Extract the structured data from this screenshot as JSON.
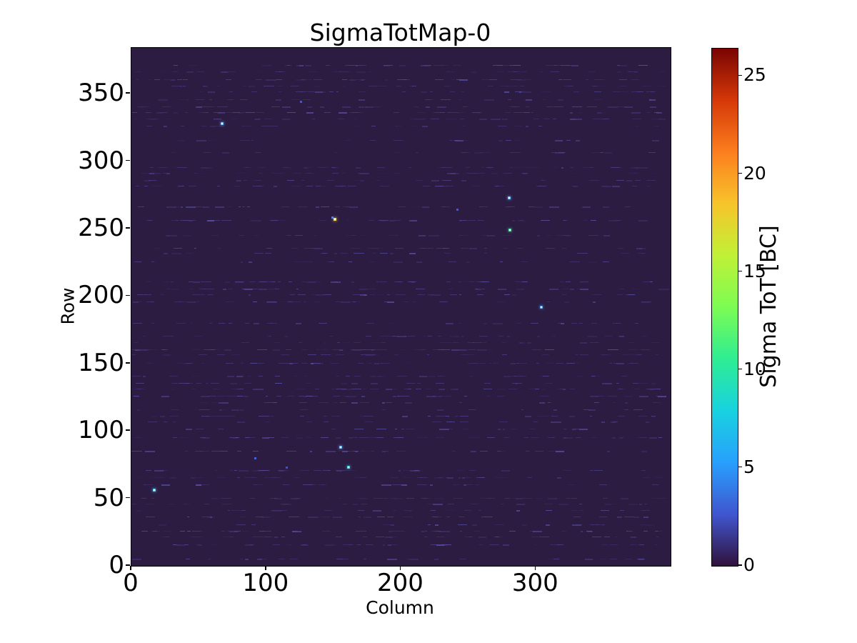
{
  "chart_data": {
    "type": "heatmap",
    "title": "SigmaTotMap-0",
    "xlabel": "Column",
    "ylabel": "Row",
    "xlim": [
      0,
      400
    ],
    "ylim": [
      0,
      384
    ],
    "x_ticks": [
      0,
      100,
      200,
      300
    ],
    "y_ticks": [
      0,
      50,
      100,
      150,
      200,
      250,
      300,
      350
    ],
    "grid": false,
    "background_color": "#2d1c42",
    "noise": {
      "description": "faint horizontal dashed streak rows of slightly elevated sigma values",
      "colors": [
        "#3a2a63",
        "#443372",
        "#4d3d84",
        "#564b9e"
      ],
      "seed": 7,
      "row_spacing_px": 9.45
    },
    "colorbar": {
      "label": "Sigma ToT [BC]",
      "vmin": 0,
      "vmax": 26.4,
      "ticks": [
        0,
        5,
        10,
        15,
        20,
        25
      ],
      "colormap": "turbo",
      "gradient_stops": [
        {
          "t": 0.0,
          "color": "#30123b"
        },
        {
          "t": 0.1,
          "color": "#4056d0"
        },
        {
          "t": 0.2,
          "color": "#28a0fd"
        },
        {
          "t": 0.3,
          "color": "#18d2df"
        },
        {
          "t": 0.4,
          "color": "#2eed92"
        },
        {
          "t": 0.5,
          "color": "#7cfc53"
        },
        {
          "t": 0.6,
          "color": "#c0f136"
        },
        {
          "t": 0.7,
          "color": "#f7c42b"
        },
        {
          "t": 0.8,
          "color": "#fc7e1e"
        },
        {
          "t": 0.9,
          "color": "#d53808"
        },
        {
          "t": 1.0,
          "color": "#7a0403"
        }
      ]
    },
    "hot_pixels": [
      {
        "col": 17,
        "row": 56,
        "color": "#45c8f0",
        "bright": true
      },
      {
        "col": 67,
        "row": 328,
        "color": "#55b0f2",
        "bright": true
      },
      {
        "col": 126,
        "row": 344,
        "color": "#4656c8",
        "bright": false
      },
      {
        "col": 149,
        "row": 258,
        "color": "#4878e8",
        "bright": false
      },
      {
        "col": 151,
        "row": 257,
        "color": "#e8d44a",
        "bright": true
      },
      {
        "col": 242,
        "row": 264,
        "color": "#4a55c8",
        "bright": false
      },
      {
        "col": 280,
        "row": 273,
        "color": "#58b4f5",
        "bright": true
      },
      {
        "col": 281,
        "row": 249,
        "color": "#38d890",
        "bright": true
      },
      {
        "col": 304,
        "row": 192,
        "color": "#3898f2",
        "bright": true
      },
      {
        "col": 92,
        "row": 80,
        "color": "#4a60d5",
        "bright": false
      },
      {
        "col": 115,
        "row": 73,
        "color": "#4550b8",
        "bright": false
      },
      {
        "col": 155,
        "row": 88,
        "color": "#50a8f2",
        "bright": true
      },
      {
        "col": 161,
        "row": 73,
        "color": "#28ccd4",
        "bright": true
      }
    ]
  }
}
